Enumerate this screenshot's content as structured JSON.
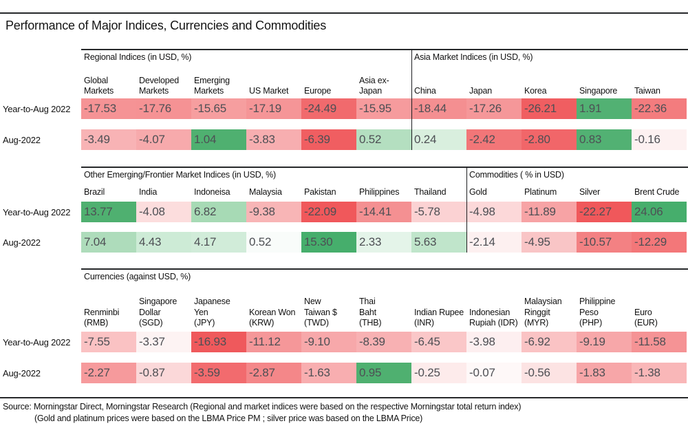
{
  "title": "Performance of Major Indices, Currencies and Commodities",
  "footer": {
    "line1": "Source: Morningstar Direct, Morningstar Research (Regional and market indices were based on the respective Morningstar total return index)",
    "line2": "(Gold and platinum prices were based on the LBMA Price PM ; silver price was based on the LBMA Price)"
  },
  "colors": {
    "strong_green": "#4fb070",
    "strong_red": "#f0585b",
    "rule": "#26282a",
    "value_text": "#4d4f54"
  },
  "chart_data": {
    "type": "heatmap",
    "title": "Performance of Major Indices, Currencies and Commodities",
    "row_labels": [
      "Year-to-Aug 2022",
      "Aug-2022"
    ],
    "legend_note": "cell color encodes sign/magnitude: green = positive, red = negative",
    "sections": [
      {
        "groups": [
          {
            "header": "Regional Indices (in USD, %)",
            "span": 6
          },
          {
            "header": "Asia Market Indices (in USD, %)",
            "span": 5
          }
        ],
        "columns": [
          [
            "Global",
            "Markets"
          ],
          [
            "Developed",
            "Markets"
          ],
          [
            "Emerging",
            "Markets"
          ],
          [
            "US Market"
          ],
          [
            "Europe"
          ],
          [
            "Asia ex-",
            "Japan"
          ],
          [
            "China"
          ],
          [
            "Japan"
          ],
          [
            "Korea"
          ],
          [
            "Singapore"
          ],
          [
            "Taiwan"
          ]
        ],
        "rows": [
          {
            "label": "Year-to-Aug 2022",
            "cells": [
              {
                "v": "-17.53",
                "c": "#f59395"
              },
              {
                "v": "-17.76",
                "c": "#f59294"
              },
              {
                "v": "-15.65",
                "c": "#f69e9f"
              },
              {
                "v": "-17.19",
                "c": "#f59597"
              },
              {
                "v": "-24.49",
                "c": "#f16a6d"
              },
              {
                "v": "-15.95",
                "c": "#f69b9d"
              },
              {
                "v": "-18.44",
                "c": "#f48f91"
              },
              {
                "v": "-17.26",
                "c": "#f59799"
              },
              {
                "v": "-26.21",
                "c": "#f05e61"
              },
              {
                "v": "1.91",
                "c": "#52b173"
              },
              {
                "v": "-22.36",
                "c": "#f37c7e"
              }
            ]
          },
          {
            "label": "Aug-2022",
            "cells": [
              {
                "v": "-3.49",
                "c": "#f8b3b5"
              },
              {
                "v": "-4.07",
                "c": "#f7aaac"
              },
              {
                "v": "1.04",
                "c": "#4fb070"
              },
              {
                "v": "-3.83",
                "c": "#f7aeb0"
              },
              {
                "v": "-6.39",
                "c": "#f05e61"
              },
              {
                "v": "0.52",
                "c": "#b4dfc0"
              },
              {
                "v": "0.24",
                "c": "#d9efde"
              },
              {
                "v": "-2.42",
                "c": "#f27678"
              },
              {
                "v": "-2.80",
                "c": "#f16669"
              },
              {
                "v": "0.83",
                "c": "#52b173"
              },
              {
                "v": "-0.16",
                "c": "#fdf1f1"
              }
            ]
          }
        ]
      },
      {
        "groups": [
          {
            "header": "Other Emerging/Frontier Market Indices (in USD, %)",
            "span": 7
          },
          {
            "header": "Commodities ( % in USD)",
            "span": 4
          }
        ],
        "columns": [
          [
            "Brazil"
          ],
          [
            "India"
          ],
          [
            "Indoneisa"
          ],
          [
            "Malaysia"
          ],
          [
            "Pakistan"
          ],
          [
            "Philippines"
          ],
          [
            "Thailand"
          ],
          [
            "Gold"
          ],
          [
            "Platinum"
          ],
          [
            "Silver"
          ],
          [
            "Brent Crude"
          ]
        ],
        "rows": [
          {
            "label": "Year-to-Aug 2022",
            "cells": [
              {
                "v": "13.77",
                "c": "#4fb070"
              },
              {
                "v": "-4.08",
                "c": "#fcdddd"
              },
              {
                "v": "6.82",
                "c": "#a7dab5"
              },
              {
                "v": "-9.38",
                "c": "#f8b5b6"
              },
              {
                "v": "-22.09",
                "c": "#f0585b"
              },
              {
                "v": "-14.41",
                "c": "#f49092"
              },
              {
                "v": "-5.78",
                "c": "#fbd2d3"
              },
              {
                "v": "-4.98",
                "c": "#fcd8d9"
              },
              {
                "v": "-11.89",
                "c": "#f7a3a5"
              },
              {
                "v": "-22.27",
                "c": "#f0585b"
              },
              {
                "v": "24.06",
                "c": "#46ae6c"
              }
            ]
          },
          {
            "label": "Aug-2022",
            "cells": [
              {
                "v": "7.04",
                "c": "#aedcbb"
              },
              {
                "v": "4.43",
                "c": "#cdebd6"
              },
              {
                "v": "4.17",
                "c": "#d1ecd9"
              },
              {
                "v": "0.52",
                "c": "#f9fcfa"
              },
              {
                "v": "15.30",
                "c": "#46ae6c"
              },
              {
                "v": "2.33",
                "c": "#e4f4e9"
              },
              {
                "v": "5.63",
                "c": "#c0e5cb"
              },
              {
                "v": "-2.14",
                "c": "#fdf0f0"
              },
              {
                "v": "-4.95",
                "c": "#f9c5c6"
              },
              {
                "v": "-10.57",
                "c": "#f38183"
              },
              {
                "v": "-12.29",
                "c": "#f37779"
              }
            ]
          }
        ]
      },
      {
        "groups": [
          {
            "header": "Currencies (against USD, %)",
            "span": 11
          }
        ],
        "columns": [
          [
            "Renminbi",
            "(RMB)"
          ],
          [
            "Singapore",
            "Dollar",
            "(SGD)"
          ],
          [
            "Japanese",
            "Yen",
            "(JPY)"
          ],
          [
            "Korean Won",
            "(KRW)"
          ],
          [
            "New",
            "Taiwan $",
            "(TWD)"
          ],
          [
            "Thai",
            "Baht",
            "(THB)"
          ],
          [
            "Indian Rupee",
            "(INR)"
          ],
          [
            "Indonesian",
            "Rupiah (IDR)"
          ],
          [
            "Malaysian",
            "Ringgit",
            "(MYR)"
          ],
          [
            "Philippine",
            "Peso",
            "(PHP)"
          ],
          [
            "Euro",
            "(EUR)"
          ]
        ],
        "rows": [
          {
            "label": "Year-to-Aug 2022",
            "cells": [
              {
                "v": "-7.55",
                "c": "#fac2c3"
              },
              {
                "v": "-3.37",
                "c": "#fdf3f3"
              },
              {
                "v": "-16.93",
                "c": "#ef595c"
              },
              {
                "v": "-11.12",
                "c": "#f59799"
              },
              {
                "v": "-9.10",
                "c": "#f7a8aa"
              },
              {
                "v": "-8.39",
                "c": "#f8b1b3"
              },
              {
                "v": "-6.45",
                "c": "#fac7c8"
              },
              {
                "v": "-3.98",
                "c": "#fdeff0"
              },
              {
                "v": "-6.92",
                "c": "#fac3c4"
              },
              {
                "v": "-9.19",
                "c": "#f7a7a9"
              },
              {
                "v": "-11.58",
                "c": "#f59395"
              }
            ]
          },
          {
            "label": "Aug-2022",
            "cells": [
              {
                "v": "-2.27",
                "c": "#f69a9c"
              },
              {
                "v": "-0.87",
                "c": "#fbd8d9"
              },
              {
                "v": "-3.59",
                "c": "#f26b6e"
              },
              {
                "v": "-2.87",
                "c": "#f48789"
              },
              {
                "v": "-1.63",
                "c": "#f8aeb0"
              },
              {
                "v": "0.95",
                "c": "#4fb070"
              },
              {
                "v": "-0.25",
                "c": "#fdebeb"
              },
              {
                "v": "-0.07",
                "c": "#fef8f8"
              },
              {
                "v": "-0.56",
                "c": "#fce3e3"
              },
              {
                "v": "-1.83",
                "c": "#f7a6a8"
              },
              {
                "v": "-1.38",
                "c": "#f9b7b8"
              }
            ]
          }
        ]
      }
    ]
  }
}
